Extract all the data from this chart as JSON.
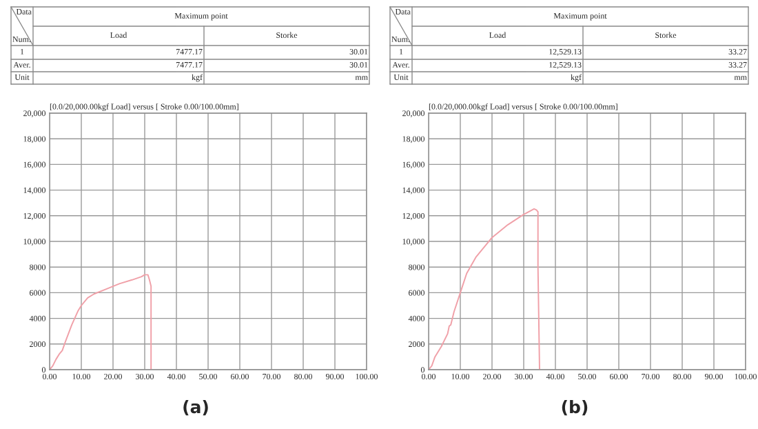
{
  "chart_data": [
    {
      "type": "line",
      "title": "[0.0/20,000.00kgf Load] versus [ Stroke 0.00/100.00mm]",
      "series": [
        {
          "color": "#f0a0a8",
          "x": [
            0,
            1,
            2,
            3,
            4,
            5,
            7,
            9,
            10,
            12,
            14,
            18,
            22,
            26,
            29,
            30,
            31,
            31.5,
            32,
            32
          ],
          "values": [
            0,
            300,
            800,
            1200,
            1500,
            2200,
            3500,
            4600,
            5000,
            5600,
            5900,
            6300,
            6700,
            7000,
            7250,
            7400,
            7400,
            7000,
            6500,
            0
          ]
        }
      ],
      "xlim": [
        0,
        100
      ],
      "ylim": [
        0,
        20000
      ],
      "xticks": [
        {
          "value": 0,
          "label": "0.00"
        },
        {
          "value": 10,
          "label": "10.00"
        },
        {
          "value": 20,
          "label": "20.00"
        },
        {
          "value": 30,
          "label": "30.00"
        },
        {
          "value": 40,
          "label": "40.00"
        },
        {
          "value": 50,
          "label": "50.00"
        },
        {
          "value": 60,
          "label": "60.00"
        },
        {
          "value": 70,
          "label": "70.00"
        },
        {
          "value": 80,
          "label": "80.00"
        },
        {
          "value": 90,
          "label": "90.00"
        },
        {
          "value": 100,
          "label": "100.00"
        }
      ],
      "yticks": [
        0,
        2000,
        4000,
        6000,
        8000,
        {
          "value": 10000,
          "label": "10,000"
        },
        {
          "value": 12000,
          "label": "12,000"
        },
        {
          "value": 14000,
          "label": "14,000"
        },
        {
          "value": 16000,
          "label": "16,000"
        },
        {
          "value": 18000,
          "label": "18,000"
        },
        {
          "value": 20000,
          "label": "20,000"
        }
      ],
      "grid": true,
      "annotations": [
        "Data",
        "Num.",
        "Maximum point",
        "Load",
        "Storke",
        "1",
        "7477.17",
        "30.01",
        "Aver.",
        "7477.17",
        "30.01",
        "Unit",
        "kgf",
        "mm",
        "(a)"
      ]
    },
    {
      "type": "line",
      "title": "[0.0/20,000.00kgf Load] versus [ Stroke 0.00/100.00mm]",
      "series": [
        {
          "color": "#f0a0a8",
          "x": [
            0,
            1,
            2,
            4,
            6,
            6.5,
            7,
            8,
            10,
            12,
            15,
            18,
            20,
            25,
            30,
            33.27,
            34,
            34.5,
            34.5,
            35
          ],
          "values": [
            0,
            300,
            1000,
            1800,
            2800,
            3400,
            3500,
            4500,
            6000,
            7500,
            8800,
            9700,
            10300,
            11300,
            12100,
            12529,
            12450,
            12300,
            8000,
            0
          ]
        }
      ],
      "xlim": [
        0,
        100
      ],
      "ylim": [
        0,
        20000
      ],
      "xticks": [
        {
          "value": 0,
          "label": "0.00"
        },
        {
          "value": 10,
          "label": "10.00"
        },
        {
          "value": 20,
          "label": "20.00"
        },
        {
          "value": 30,
          "label": "30.00"
        },
        {
          "value": 40,
          "label": "40.00"
        },
        {
          "value": 50,
          "label": "50.00"
        },
        {
          "value": 60,
          "label": "60.00"
        },
        {
          "value": 70,
          "label": "70.00"
        },
        {
          "value": 80,
          "label": "80.00"
        },
        {
          "value": 90,
          "label": "90.00"
        },
        {
          "value": 100,
          "label": "100.00"
        }
      ],
      "yticks": [
        0,
        2000,
        4000,
        6000,
        8000,
        {
          "value": 10000,
          "label": "10,000"
        },
        {
          "value": 12000,
          "label": "12,000"
        },
        {
          "value": 14000,
          "label": "14,000"
        },
        {
          "value": 16000,
          "label": "16,000"
        },
        {
          "value": 18000,
          "label": "18,000"
        },
        {
          "value": 20000,
          "label": "20,000"
        }
      ],
      "grid": true,
      "annotations": [
        "Data",
        "Num.",
        "Maximum point",
        "Load",
        "Storke",
        "1",
        "12,529.13",
        "33.27",
        "Aver.",
        "12,529.13",
        "33.27",
        "Unit",
        "kgf",
        "mm",
        "(b)"
      ]
    }
  ]
}
